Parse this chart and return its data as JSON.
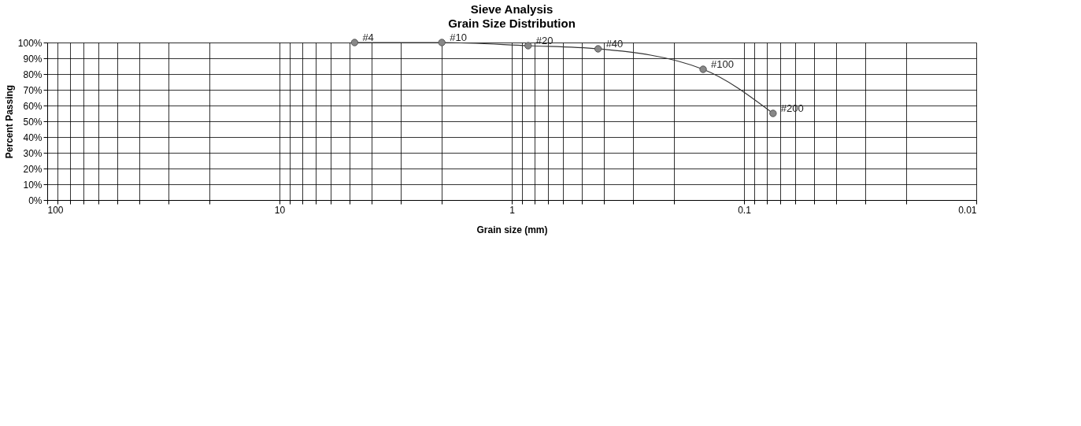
{
  "chart_data": {
    "type": "line",
    "title": "Sieve Analysis",
    "subtitle": "Grain Size Distribution",
    "xlabel": "Grain size (mm)",
    "ylabel": "Percent Passing",
    "x": [
      4.75,
      2.0,
      0.85,
      0.425,
      0.15,
      0.075
    ],
    "series": [
      {
        "color": "#333333",
        "values": [
          100,
          100,
          98,
          96,
          83,
          55
        ]
      }
    ],
    "marker": "circle",
    "line_style": "solid",
    "log": "x",
    "grid": true,
    "xlim": [
      100,
      0.01
    ],
    "xticks": [
      100,
      {
        "value": 90,
        "label": null
      },
      {
        "value": 80,
        "label": null
      },
      {
        "value": 70,
        "label": null
      },
      {
        "value": 60,
        "label": null
      },
      {
        "value": 50,
        "label": null
      },
      {
        "value": 40,
        "label": null
      },
      {
        "value": 30,
        "label": null
      },
      {
        "value": 20,
        "label": null
      },
      10,
      {
        "value": 9,
        "label": null
      },
      {
        "value": 8,
        "label": null
      },
      {
        "value": 7,
        "label": null
      },
      {
        "value": 6,
        "label": null
      },
      {
        "value": 5,
        "label": null
      },
      {
        "value": 4,
        "label": null
      },
      {
        "value": 3,
        "label": null
      },
      {
        "value": 2,
        "label": null
      },
      1,
      {
        "value": 0.9,
        "label": null
      },
      {
        "value": 0.8,
        "label": null
      },
      {
        "value": 0.7,
        "label": null
      },
      {
        "value": 0.6,
        "label": null
      },
      {
        "value": 0.5,
        "label": null
      },
      {
        "value": 0.4,
        "label": null
      },
      {
        "value": 0.3,
        "label": null
      },
      {
        "value": 0.2,
        "label": null
      },
      0.1,
      {
        "value": 0.09,
        "label": null
      },
      {
        "value": 0.08,
        "label": null
      },
      {
        "value": 0.07,
        "label": null
      },
      {
        "value": 0.06,
        "label": null
      },
      {
        "value": 0.05,
        "label": null
      },
      {
        "value": 0.04,
        "label": null
      },
      {
        "value": 0.03,
        "label": null
      },
      {
        "value": 0.02,
        "label": null
      },
      0.01
    ],
    "ylim": [
      0,
      100
    ],
    "yticks": [
      {
        "value": 0,
        "label": "0%"
      },
      {
        "value": 10,
        "label": "10%"
      },
      {
        "value": 20,
        "label": "20%"
      },
      {
        "value": 30,
        "label": "30%"
      },
      {
        "value": 40,
        "label": "40%"
      },
      {
        "value": 50,
        "label": "50%"
      },
      {
        "value": 60,
        "label": "60%"
      },
      {
        "value": 70,
        "label": "70%"
      },
      {
        "value": 80,
        "label": "80%"
      },
      {
        "value": 90,
        "label": "90%"
      },
      {
        "value": 100,
        "label": "100%"
      }
    ],
    "annotations": [
      {
        "text": "#4",
        "x": 4.75,
        "y": 100
      },
      {
        "text": "#10",
        "x": 2.0,
        "y": 100
      },
      {
        "text": "#20",
        "x": 0.85,
        "y": 98
      },
      {
        "text": "#40",
        "x": 0.425,
        "y": 96
      },
      {
        "text": "#100",
        "x": 0.15,
        "y": 83
      },
      {
        "text": "#200",
        "x": 0.075,
        "y": 55
      }
    ]
  }
}
